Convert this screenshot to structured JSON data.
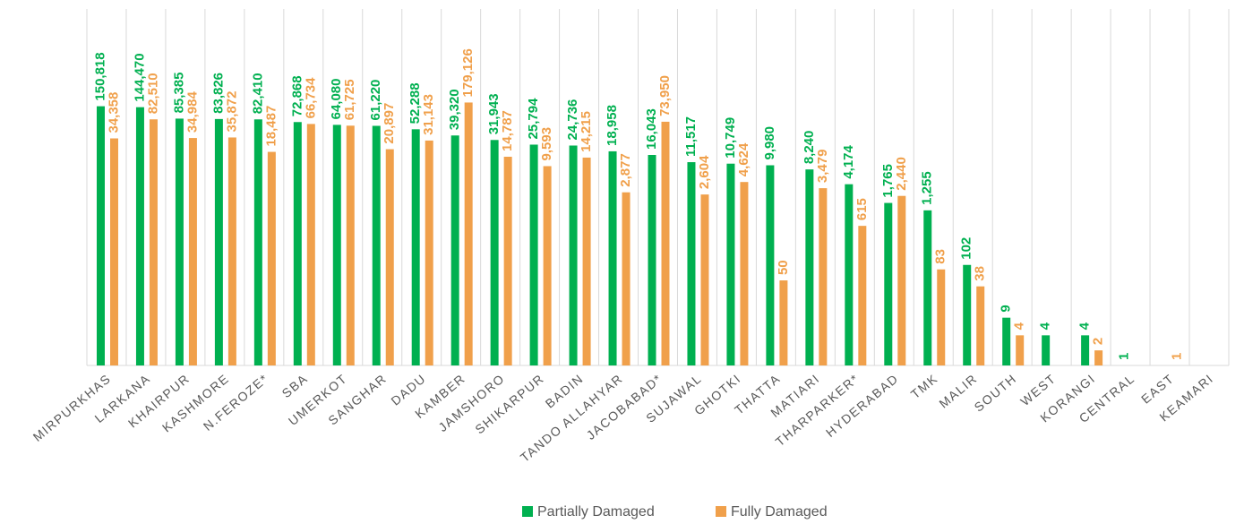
{
  "chart_data": {
    "type": "bar",
    "log_scale": true,
    "grid": "vertical",
    "legend": "bottom",
    "categories": [
      "MIRPURKHAS",
      "LARKANA",
      "KHAIRPUR",
      "KASHMORE",
      "N.FEROZE*",
      "SBA",
      "UMERKOT",
      "SANGHAR",
      "DADU",
      "KAMBER",
      "JAMSHORO",
      "SHIKARPUR",
      "BADIN",
      "TANDO ALLAHYAR",
      "JACOBABAD*",
      "SUJAWAL",
      "GHOTKI",
      "THATTA",
      "MATIARI",
      "THARPARKER*",
      "HYDERABAD",
      "TMK",
      "MALIR",
      "SOUTH",
      "WEST",
      "KORANGI",
      "CENTRAL",
      "EAST",
      "KEAMARI"
    ],
    "ylim": [
      1,
      20000000
    ],
    "series": [
      {
        "name": "Partially Damaged",
        "color": "#00b050",
        "values": [
          150818,
          144470,
          85385,
          83826,
          82410,
          72868,
          64080,
          61220,
          52288,
          39320,
          31943,
          25794,
          24736,
          18958,
          16043,
          11517,
          10749,
          9980,
          8240,
          4174,
          1765,
          1255,
          102,
          9,
          4,
          4,
          1,
          null,
          null
        ],
        "value_labels": [
          "150,818",
          "144,470",
          "85,385",
          "83,826",
          "82,410",
          "72,868",
          "64,080",
          "61,220",
          "52,288",
          "39,320",
          "31,943",
          "25,794",
          "24,736",
          "18,958",
          "16,043",
          "11,517",
          "10,749",
          "9,980",
          "8,240",
          "4,174",
          "1,765",
          "1,255",
          "102",
          "9",
          "4",
          "4",
          "1",
          null,
          null
        ]
      },
      {
        "name": "Fully Damaged",
        "color": "#f0a04b",
        "values": [
          34358,
          82510,
          34984,
          35872,
          18487,
          66734,
          61725,
          20897,
          31143,
          179126,
          14787,
          9593,
          14215,
          2877,
          73950,
          2604,
          4624,
          50,
          3479,
          615,
          2440,
          83,
          38,
          4,
          null,
          2,
          null,
          1,
          null
        ],
        "value_labels": [
          "34,358",
          "82,510",
          "34,984",
          "35,872",
          "18,487",
          "66,734",
          "61,725",
          "20,897",
          "31,143",
          "179,126",
          "14,787",
          "9,593",
          "14,215",
          "2,877",
          "73,950",
          "2,604",
          "4,624",
          "50",
          "3,479",
          "615",
          "2,440",
          "83",
          "38",
          "4",
          null,
          "2",
          null,
          "1",
          null
        ]
      }
    ]
  }
}
